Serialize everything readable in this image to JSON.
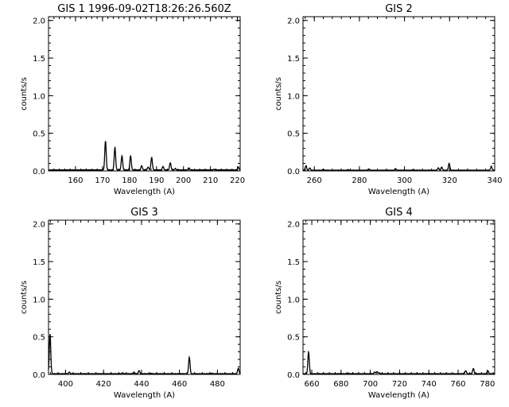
{
  "chart_data": [
    {
      "type": "line",
      "title": "GIS 1 1996-09-02T18:26:26.560Z",
      "xlabel": "Wavelength (A)",
      "ylabel": "counts/s",
      "xlim": [
        150,
        221
      ],
      "ylim": [
        0,
        2.05
      ],
      "xticks": [
        160,
        170,
        180,
        190,
        200,
        210,
        220
      ],
      "yticks": [
        0.0,
        0.5,
        1.0,
        1.5,
        2.0
      ],
      "ytick_labels": [
        "0.0",
        "0.5",
        "1.0",
        "1.5",
        "2.0"
      ],
      "series": [
        {
          "baseline": 0.012,
          "peaks": [
            {
              "x": 171.1,
              "y": 0.4
            },
            {
              "x": 174.6,
              "y": 0.31
            },
            {
              "x": 177.2,
              "y": 0.2
            },
            {
              "x": 180.4,
              "y": 0.2
            },
            {
              "x": 184.5,
              "y": 0.07
            },
            {
              "x": 186.9,
              "y": 0.05
            },
            {
              "x": 188.2,
              "y": 0.18
            },
            {
              "x": 192.4,
              "y": 0.06
            },
            {
              "x": 195.1,
              "y": 0.11
            },
            {
              "x": 197.0,
              "y": 0.03
            },
            {
              "x": 202.0,
              "y": 0.04
            },
            {
              "x": 211.3,
              "y": 0.02
            },
            {
              "x": 220.3,
              "y": 0.05
            }
          ]
        }
      ]
    },
    {
      "type": "line",
      "title": "GIS 2",
      "xlabel": "Wavelength (A)",
      "ylabel": "counts/s",
      "xlim": [
        255,
        340
      ],
      "ylim": [
        0,
        2.05
      ],
      "xticks": [
        260,
        280,
        300,
        320,
        340
      ],
      "yticks": [
        0.0,
        0.5,
        1.0,
        1.5,
        2.0
      ],
      "ytick_labels": [
        "0.0",
        "0.5",
        "1.0",
        "1.5",
        "2.0"
      ],
      "series": [
        {
          "baseline": 0.008,
          "peaks": [
            {
              "x": 256.3,
              "y": 0.07
            },
            {
              "x": 258.0,
              "y": 0.04
            },
            {
              "x": 264.0,
              "y": 0.02
            },
            {
              "x": 275.0,
              "y": 0.015
            },
            {
              "x": 284.2,
              "y": 0.025
            },
            {
              "x": 296.0,
              "y": 0.03
            },
            {
              "x": 303.8,
              "y": 0.015
            },
            {
              "x": 315.0,
              "y": 0.04
            },
            {
              "x": 316.5,
              "y": 0.05
            },
            {
              "x": 319.8,
              "y": 0.1
            },
            {
              "x": 338.5,
              "y": 0.06
            }
          ]
        }
      ]
    },
    {
      "type": "line",
      "title": "GIS 3",
      "xlabel": "Wavelength (A)",
      "ylabel": "counts/s",
      "xlim": [
        391,
        492
      ],
      "ylim": [
        0,
        2.05
      ],
      "xticks": [
        400,
        420,
        440,
        460,
        480
      ],
      "yticks": [
        0.0,
        0.5,
        1.0,
        1.5,
        2.0
      ],
      "ytick_labels": [
        "0.0",
        "0.5",
        "1.0",
        "1.5",
        "2.0"
      ],
      "series": [
        {
          "baseline": 0.008,
          "peaks": [
            {
              "x": 391.8,
              "y": 0.54
            },
            {
              "x": 402.0,
              "y": 0.03
            },
            {
              "x": 430.0,
              "y": 0.02
            },
            {
              "x": 436.0,
              "y": 0.03
            },
            {
              "x": 438.7,
              "y": 0.05
            },
            {
              "x": 445.0,
              "y": 0.015
            },
            {
              "x": 465.2,
              "y": 0.23
            },
            {
              "x": 477.0,
              "y": 0.015
            },
            {
              "x": 491.0,
              "y": 0.08
            }
          ]
        }
      ]
    },
    {
      "type": "line",
      "title": "GIS 4",
      "xlabel": "Wavelength (A)",
      "ylabel": "counts/s",
      "xlim": [
        654,
        785
      ],
      "ylim": [
        0,
        2.05
      ],
      "xticks": [
        660,
        680,
        700,
        720,
        740,
        760,
        780
      ],
      "yticks": [
        0.0,
        0.5,
        1.0,
        1.5,
        2.0
      ],
      "ytick_labels": [
        "0.0",
        "0.5",
        "1.0",
        "1.5",
        "2.0"
      ],
      "series": [
        {
          "baseline": 0.008,
          "peaks": [
            {
              "x": 657.8,
              "y": 0.3
            },
            {
              "x": 685.0,
              "y": 0.015
            },
            {
              "x": 703.0,
              "y": 0.03
            },
            {
              "x": 704.5,
              "y": 0.035
            },
            {
              "x": 706.0,
              "y": 0.02
            },
            {
              "x": 740.0,
              "y": 0.01
            },
            {
              "x": 765.2,
              "y": 0.05
            },
            {
              "x": 770.4,
              "y": 0.08
            },
            {
              "x": 780.3,
              "y": 0.05
            }
          ]
        }
      ]
    }
  ]
}
